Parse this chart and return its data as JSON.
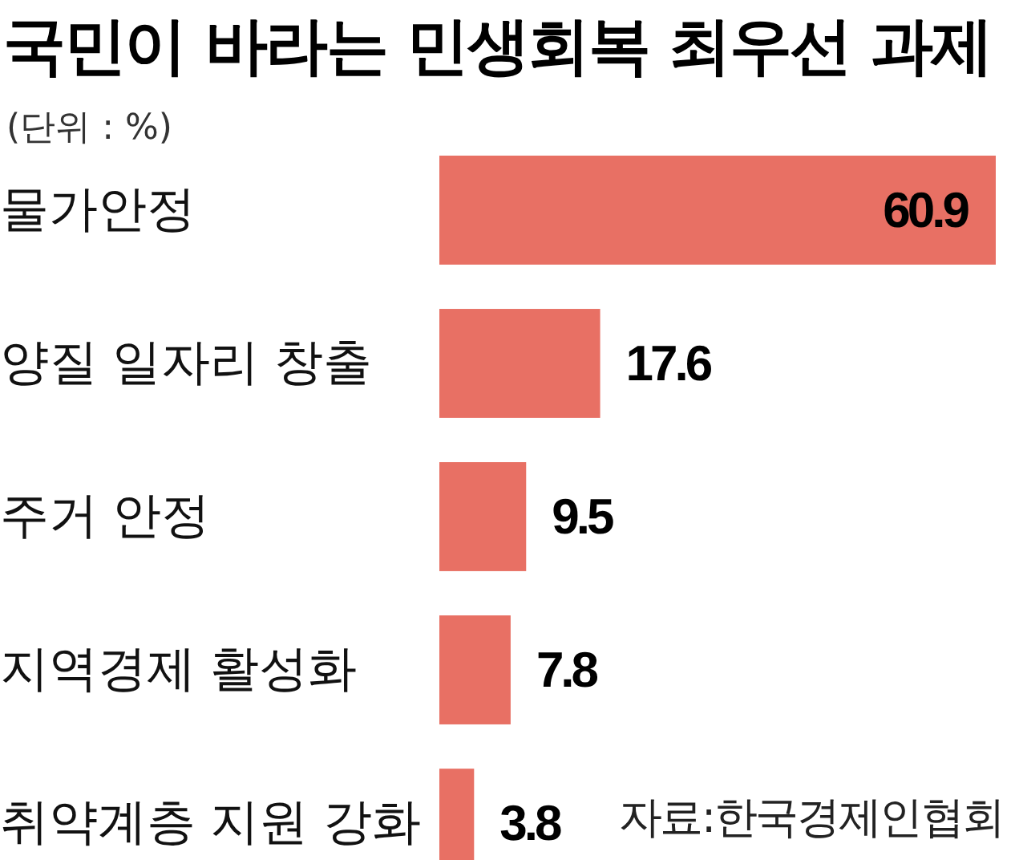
{
  "chart_data": {
    "type": "bar",
    "orientation": "horizontal",
    "title": "국민이 바라는 민생회복 최우선 과제",
    "subtitle": "(단위 : %)",
    "categories": [
      "물가안정",
      "양질 일자리 창출",
      "주거 안정",
      "지역경제 활성화",
      "취약계층 지원 강화"
    ],
    "values": [
      60.9,
      17.6,
      9.5,
      7.8,
      3.8
    ],
    "color": "#e87064",
    "data_labels": true,
    "annotations": [
      "자료:한국경제인협회"
    ]
  }
}
